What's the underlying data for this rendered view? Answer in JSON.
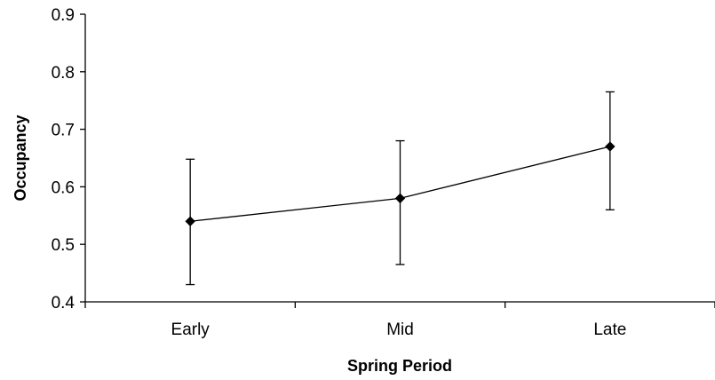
{
  "chart_data": {
    "type": "line",
    "title": "",
    "xlabel": "Spring Period",
    "ylabel": "Occupancy",
    "categories": [
      "Early",
      "Mid",
      "Late"
    ],
    "series": [
      {
        "values": [
          0.54,
          0.58,
          0.67
        ],
        "error_low": [
          0.43,
          0.465,
          0.56
        ],
        "error_high": [
          0.648,
          0.68,
          0.765
        ],
        "marker": "diamond",
        "color": "#000000"
      }
    ],
    "ylim": [
      0.4,
      0.9
    ],
    "y_ticks": [
      "0.4",
      "0.5",
      "0.6",
      "0.7",
      "0.8",
      "0.9"
    ],
    "grid": false,
    "legend": "none"
  }
}
